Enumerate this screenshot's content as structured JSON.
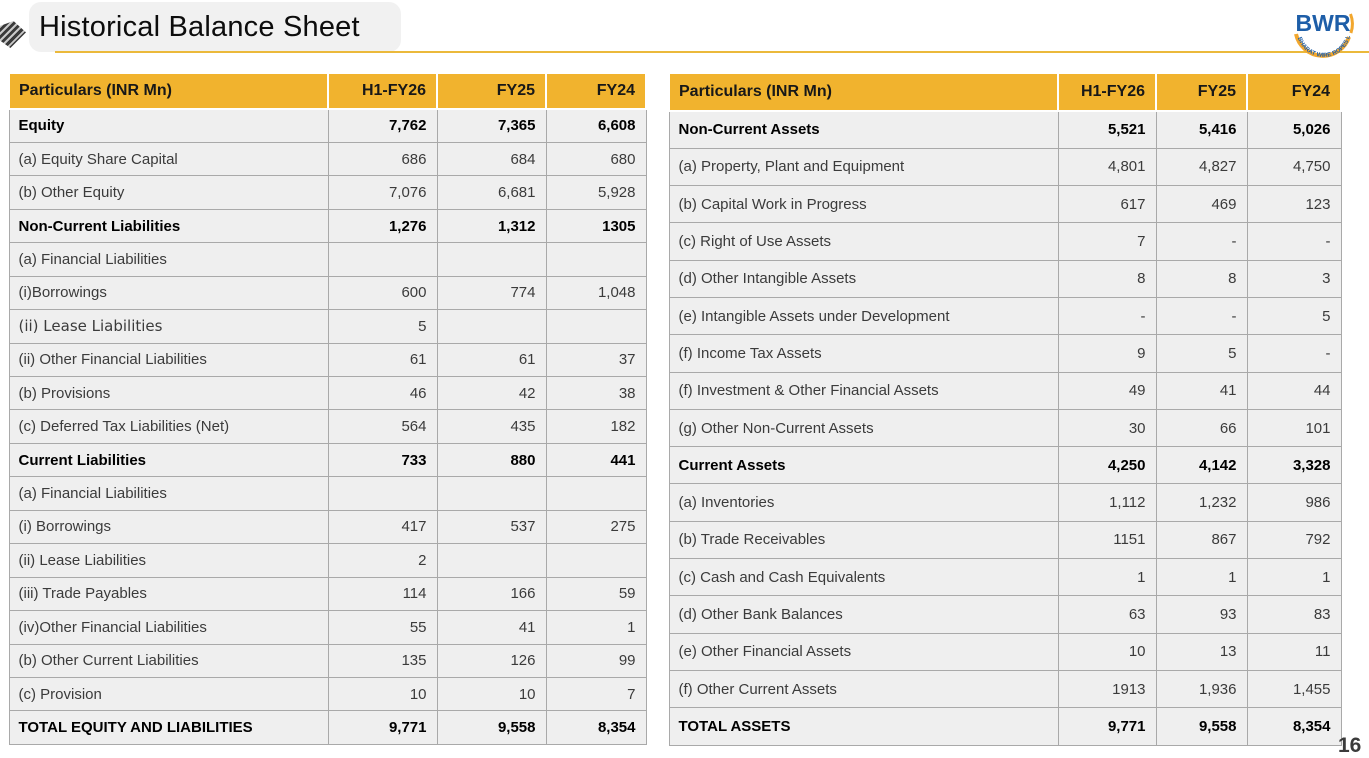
{
  "page": {
    "title": "Historical Balance Sheet",
    "page_number": "16"
  },
  "logo": {
    "text": "BWR",
    "subtext": "BHARAT WIRE ROPES LTD."
  },
  "colors": {
    "header_gold": "#F1B32E",
    "cell_bg": "#EFEFEF",
    "gridline": "#A9A9A9",
    "title_underline": "#EBB93B",
    "logo_blue": "#1E5EA8",
    "logo_gold": "#F2A72E"
  },
  "left_table": {
    "columns": [
      "Particulars (INR Mn)",
      "H1-FY26",
      "FY25",
      "FY24"
    ],
    "rows": [
      {
        "label": "Equity",
        "bold": true,
        "values": [
          "7,762",
          "7,365",
          "6,608"
        ]
      },
      {
        "label": "(a) Equity Share Capital",
        "bold": false,
        "values": [
          "686",
          "684",
          "680"
        ]
      },
      {
        "label": "(b) Other Equity",
        "bold": false,
        "values": [
          "7,076",
          "6,681",
          "5,928"
        ]
      },
      {
        "label": "Non-Current Liabilities",
        "bold": true,
        "values": [
          "1,276",
          "1,312",
          "1305"
        ]
      },
      {
        "label": "(a) Financial Liabilities",
        "bold": false,
        "values": [
          "",
          "",
          ""
        ]
      },
      {
        "label": "(i)Borrowings",
        "bold": false,
        "values": [
          "600",
          "774",
          "1,048"
        ]
      },
      {
        "label": "(ii) Lease Liabilities",
        "bold": false,
        "alt_font": true,
        "values": [
          "5",
          "",
          ""
        ]
      },
      {
        "label": "(ii) Other Financial Liabilities",
        "bold": false,
        "values": [
          "61",
          "61",
          "37"
        ]
      },
      {
        "label": "(b) Provisions",
        "bold": false,
        "values": [
          "46",
          "42",
          "38"
        ]
      },
      {
        "label": "(c) Deferred Tax Liabilities (Net)",
        "bold": false,
        "values": [
          "564",
          "435",
          "182"
        ]
      },
      {
        "label": "Current Liabilities",
        "bold": true,
        "values": [
          "733",
          "880",
          "441"
        ]
      },
      {
        "label": "(a) Financial Liabilities",
        "bold": false,
        "values": [
          "",
          "",
          ""
        ]
      },
      {
        "label": "(i) Borrowings",
        "bold": false,
        "values": [
          "417",
          "537",
          "275"
        ]
      },
      {
        "label": "(ii) Lease Liabilities",
        "bold": false,
        "values": [
          "2",
          "",
          ""
        ]
      },
      {
        "label": "(iii) Trade Payables",
        "bold": false,
        "values": [
          "114",
          "166",
          "59"
        ]
      },
      {
        "label": "(iv)Other Financial Liabilities",
        "bold": false,
        "values": [
          "55",
          "41",
          "1"
        ]
      },
      {
        "label": "(b) Other Current Liabilities",
        "bold": false,
        "values": [
          "135",
          "126",
          "99"
        ]
      },
      {
        "label": "(c) Provision",
        "bold": false,
        "values": [
          "10",
          "10",
          "7"
        ]
      },
      {
        "label": "TOTAL EQUITY AND LIABILITIES",
        "bold": true,
        "values": [
          "9,771",
          "9,558",
          "8,354"
        ]
      }
    ]
  },
  "right_table": {
    "columns": [
      "Particulars (INR Mn)",
      "H1-FY26",
      "FY25",
      "FY24"
    ],
    "rows": [
      {
        "label": "Non-Current Assets",
        "bold": true,
        "values": [
          "5,521",
          "5,416",
          "5,026"
        ]
      },
      {
        "label": "(a) Property, Plant and Equipment",
        "bold": false,
        "values": [
          "4,801",
          "4,827",
          "4,750"
        ]
      },
      {
        "label": "(b) Capital Work in Progress",
        "bold": false,
        "values": [
          "617",
          "469",
          "123"
        ]
      },
      {
        "label": "(c) Right of Use Assets",
        "bold": false,
        "values": [
          "7",
          "-",
          "-"
        ]
      },
      {
        "label": "(d) Other Intangible Assets",
        "bold": false,
        "values": [
          "8",
          "8",
          "3"
        ]
      },
      {
        "label": "(e) Intangible Assets under Development",
        "bold": false,
        "values": [
          "-",
          "-",
          "5"
        ]
      },
      {
        "label": "(f) Income Tax Assets",
        "bold": false,
        "values": [
          "9",
          "5",
          "-"
        ]
      },
      {
        "label": "(f) Investment & Other Financial Assets",
        "bold": false,
        "values": [
          "49",
          "41",
          "44"
        ]
      },
      {
        "label": "(g) Other Non-Current Assets",
        "bold": false,
        "values": [
          "30",
          "66",
          "101"
        ]
      },
      {
        "label": "Current Assets",
        "bold": true,
        "values": [
          "4,250",
          "4,142",
          "3,328"
        ]
      },
      {
        "label": "(a) Inventories",
        "bold": false,
        "values": [
          "1,112",
          "1,232",
          "986"
        ]
      },
      {
        "label": "(b) Trade Receivables",
        "bold": false,
        "values": [
          "1151",
          "867",
          "792"
        ]
      },
      {
        "label": "(c) Cash and Cash Equivalents",
        "bold": false,
        "values": [
          "1",
          "1",
          "1"
        ]
      },
      {
        "label": "(d) Other Bank Balances",
        "bold": false,
        "values": [
          "63",
          "93",
          "83"
        ]
      },
      {
        "label": "(e) Other Financial Assets",
        "bold": false,
        "values": [
          "10",
          "13",
          "11"
        ]
      },
      {
        "label": "(f) Other Current Assets",
        "bold": false,
        "values": [
          "1913",
          "1,936",
          "1,455"
        ]
      },
      {
        "label": "TOTAL ASSETS",
        "bold": true,
        "values": [
          "9,771",
          "9,558",
          "8,354"
        ]
      }
    ]
  }
}
